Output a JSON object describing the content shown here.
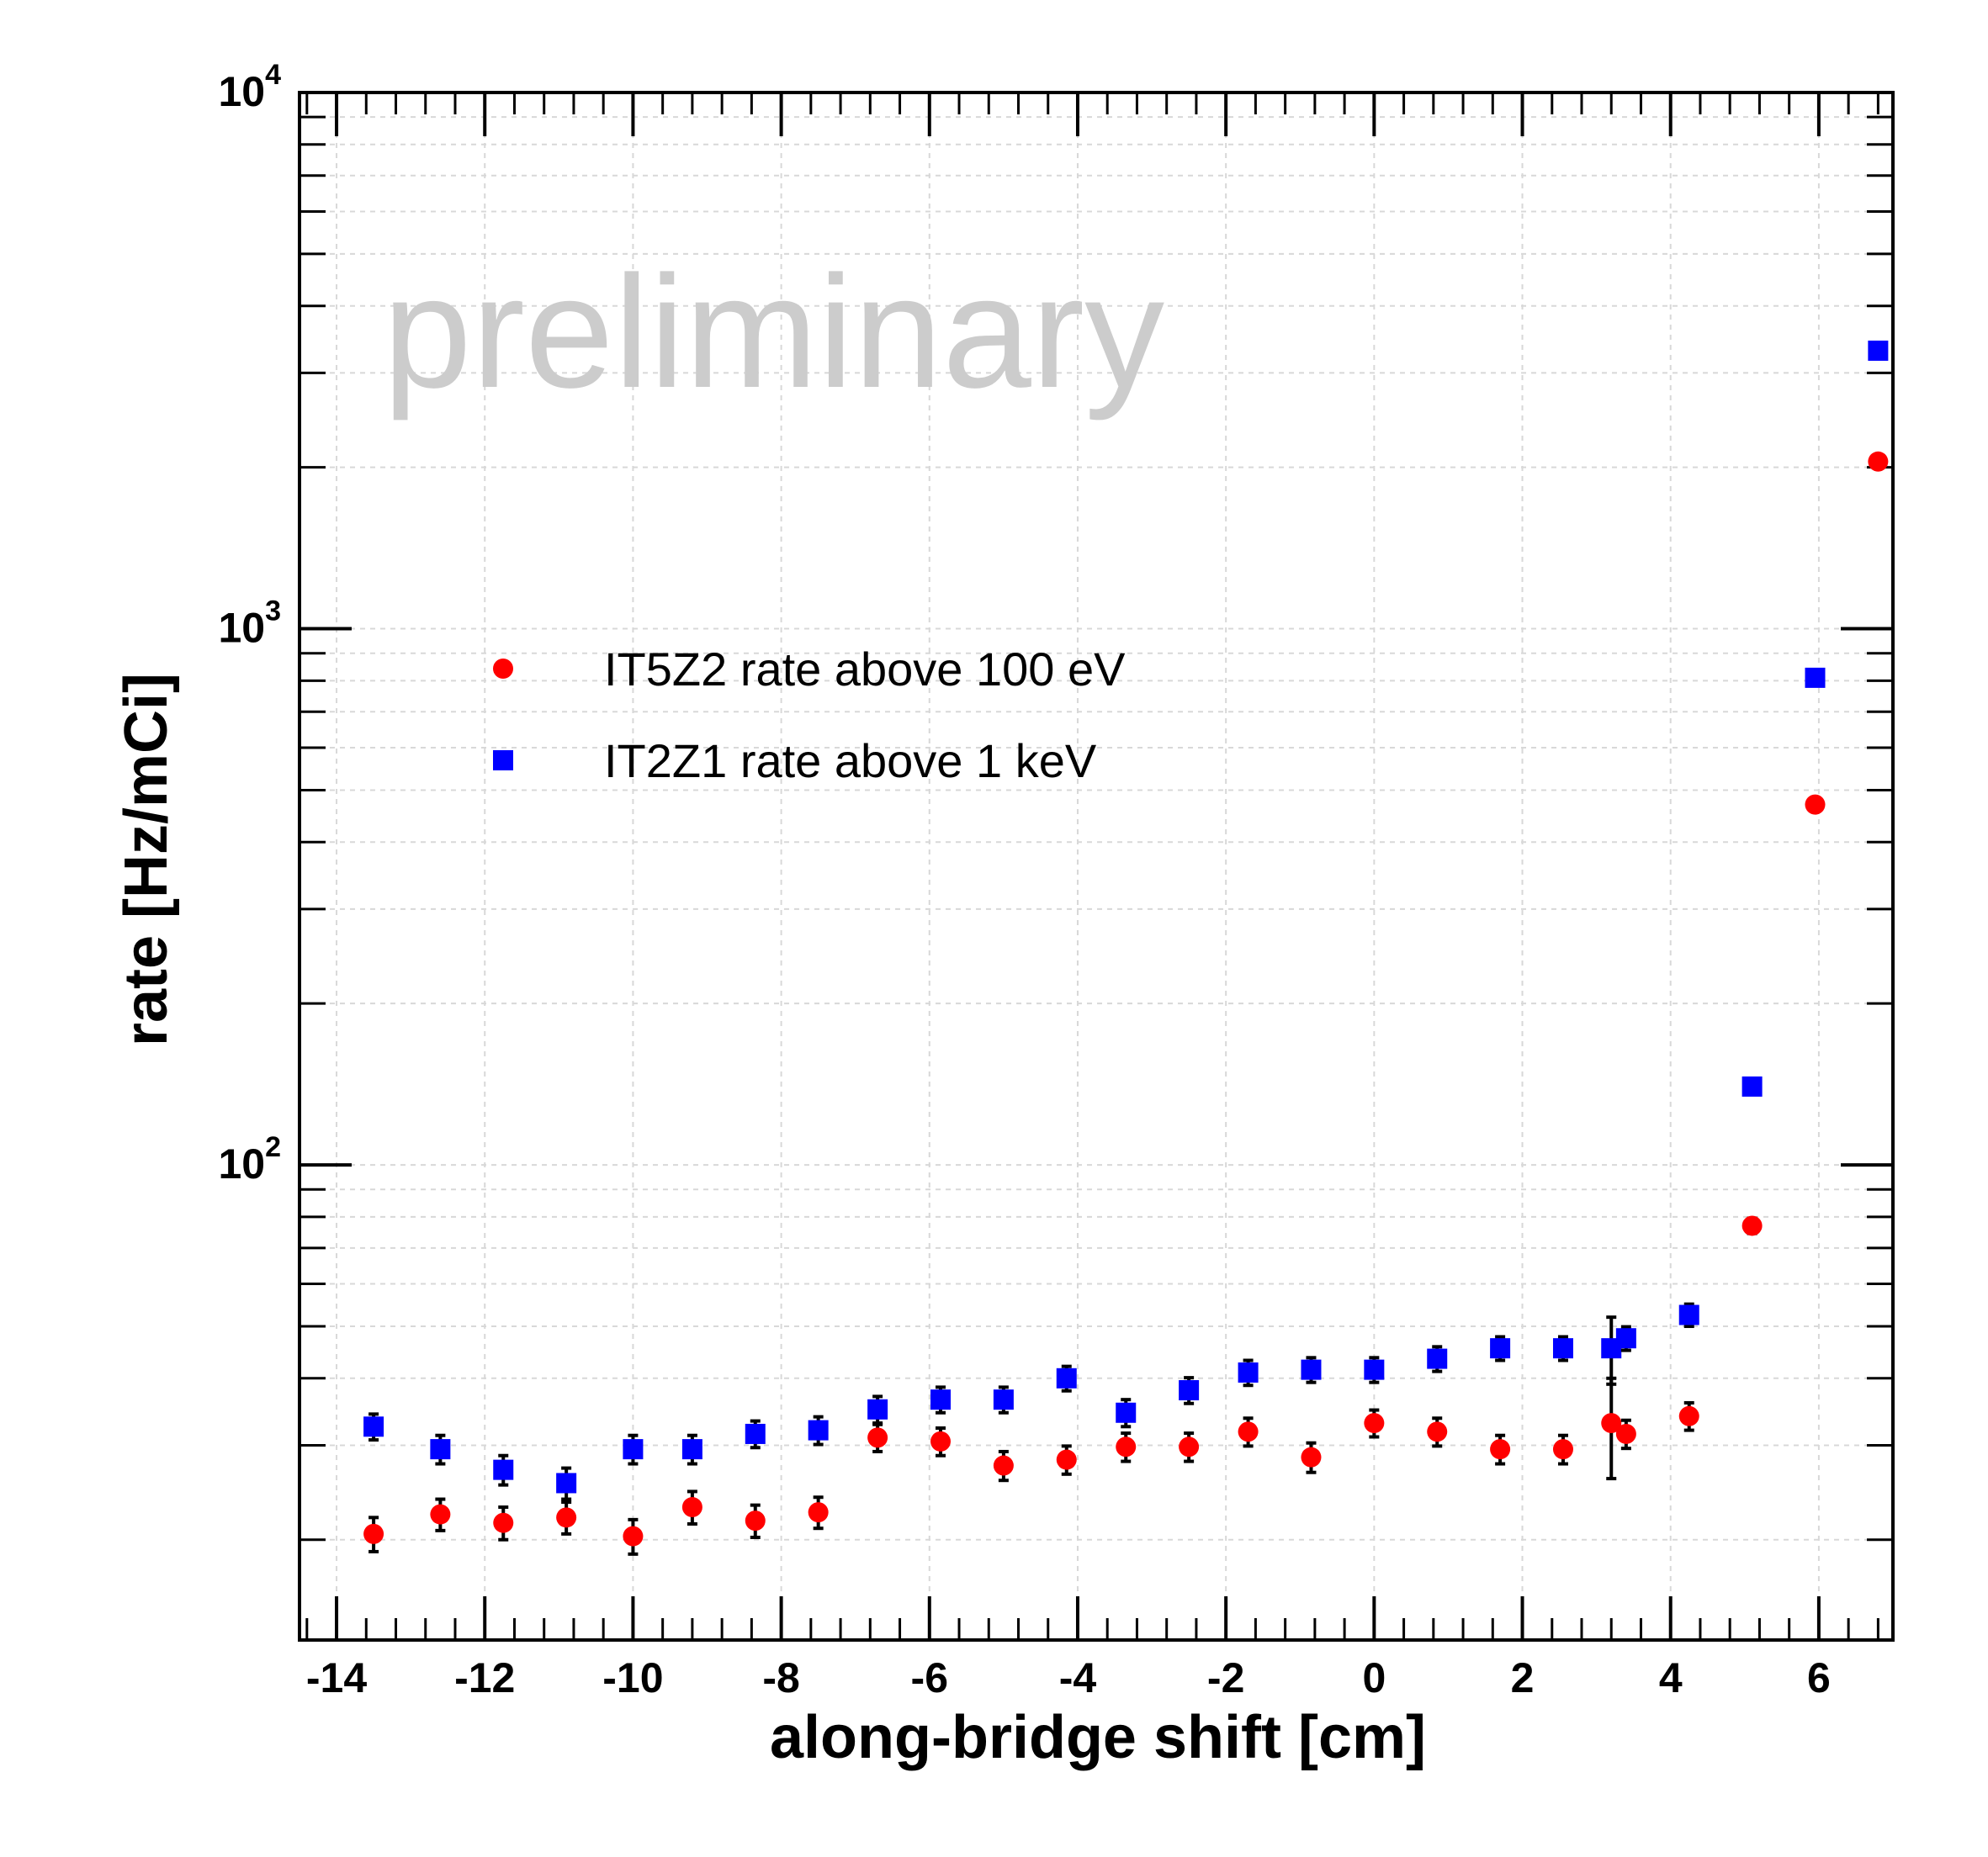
{
  "chart_data": {
    "type": "scatter",
    "title": "",
    "xlabel": "along-bridge shift [cm]",
    "ylabel": "rate [Hz/mCi]",
    "xlim": [
      -14.5,
      7
    ],
    "ylim": [
      13,
      10000
    ],
    "yscale": "log",
    "grid": true,
    "watermark": "preliminary",
    "x_ticks": [
      {
        "value": -14,
        "label": "-14"
      },
      {
        "value": -12,
        "label": "-12"
      },
      {
        "value": -10,
        "label": "-10"
      },
      {
        "value": -8,
        "label": "-8"
      },
      {
        "value": -6,
        "label": "-6"
      },
      {
        "value": -4,
        "label": "-4"
      },
      {
        "value": -2,
        "label": "-2"
      },
      {
        "value": 0,
        "label": "0"
      },
      {
        "value": 2,
        "label": "2"
      },
      {
        "value": 4,
        "label": "4"
      },
      {
        "value": 6,
        "label": "6"
      }
    ],
    "y_ticks": [
      {
        "value": 100,
        "base": "10",
        "exp": "2"
      },
      {
        "value": 1000,
        "base": "10",
        "exp": "3"
      },
      {
        "value": 10000,
        "base": "10",
        "exp": "4"
      }
    ],
    "legend_position": "upper-left",
    "series": [
      {
        "name": "IT5Z2 rate above 100 eV",
        "marker": "circle",
        "color": "#ff0000",
        "x": [
          -13.5,
          -12.6,
          -11.75,
          -10.9,
          -10.0,
          -9.2,
          -8.35,
          -7.5,
          -6.7,
          -5.85,
          -5.0,
          -4.15,
          -3.35,
          -2.5,
          -1.7,
          -0.85,
          0.0,
          0.85,
          1.7,
          2.55,
          3.2,
          3.4,
          4.25,
          5.1,
          5.95,
          6.8
        ],
        "y": [
          20.5,
          22.3,
          21.5,
          22.0,
          20.3,
          23.0,
          21.7,
          22.5,
          31.0,
          30.5,
          27.5,
          28.2,
          29.8,
          29.8,
          31.8,
          28.5,
          33.0,
          31.8,
          29.5,
          29.5,
          33.0,
          31.5,
          34.0,
          77.0,
          470.0,
          2050.0
        ],
        "yerr": [
          1.5,
          1.5,
          1.5,
          1.5,
          1.5,
          1.6,
          1.5,
          1.5,
          1.8,
          1.8,
          1.7,
          1.7,
          1.8,
          1.8,
          1.9,
          1.8,
          1.9,
          1.9,
          1.8,
          1.8,
          7.0,
          1.9,
          2.0,
          2.5,
          8.0,
          30.0
        ]
      },
      {
        "name": "IT2Z1 rate above 1 keV",
        "marker": "square",
        "color": "#0000ff",
        "x": [
          -13.5,
          -12.6,
          -11.75,
          -10.9,
          -10.0,
          -9.2,
          -8.35,
          -7.5,
          -6.7,
          -5.85,
          -5.0,
          -4.15,
          -3.35,
          -2.5,
          -1.7,
          -0.85,
          0.0,
          0.85,
          1.7,
          2.55,
          3.2,
          3.4,
          4.25,
          5.1,
          5.95,
          6.8
        ],
        "y": [
          32.5,
          29.5,
          27.0,
          25.5,
          29.5,
          29.5,
          31.5,
          32.0,
          35.0,
          36.5,
          36.5,
          40.0,
          34.5,
          38.0,
          41.0,
          41.5,
          41.5,
          43.5,
          45.5,
          45.5,
          45.5,
          47.5,
          52.5,
          140.0,
          810.0,
          3300.0
        ],
        "yerr": [
          1.8,
          1.8,
          1.7,
          1.7,
          1.8,
          1.8,
          1.8,
          1.9,
          2.0,
          2.0,
          2.0,
          2.1,
          2.0,
          2.1,
          2.2,
          2.2,
          2.2,
          2.3,
          2.3,
          2.3,
          6.5,
          2.4,
          2.5,
          4.0,
          12.0,
          40.0
        ]
      }
    ]
  }
}
